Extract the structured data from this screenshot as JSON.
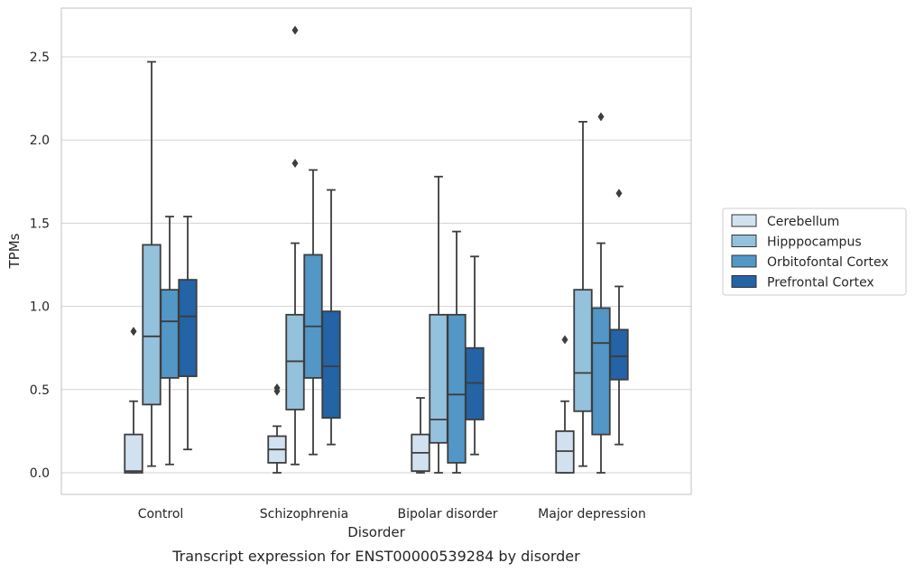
{
  "chart_data": {
    "type": "box",
    "caption": "Transcript expression for ENST00000539284 by disorder",
    "xlabel": "Disorder",
    "ylabel": "TPMs",
    "ylim": [
      -0.13,
      2.8
    ],
    "yticks": [
      0.0,
      0.5,
      1.0,
      1.5,
      2.0,
      2.5
    ],
    "grid": "horizontal",
    "legend_position": "right",
    "categories": [
      "Control",
      "Schizophrenia",
      "Bipolar disorder",
      "Major depression"
    ],
    "series": [
      {
        "name": "Cerebellum",
        "color": "#d1e1f0",
        "boxes": [
          {
            "whislo": 0.0,
            "q1": 0.0,
            "med": 0.01,
            "q3": 0.23,
            "whishi": 0.43,
            "fliers": [
              0.85
            ]
          },
          {
            "whislo": 0.0,
            "q1": 0.06,
            "med": 0.14,
            "q3": 0.22,
            "whishi": 0.28,
            "fliers": [
              0.49,
              0.51
            ]
          },
          {
            "whislo": 0.0,
            "q1": 0.01,
            "med": 0.12,
            "q3": 0.23,
            "whishi": 0.45,
            "fliers": []
          },
          {
            "whislo": 0.0,
            "q1": 0.0,
            "med": 0.13,
            "q3": 0.25,
            "whishi": 0.43,
            "fliers": [
              0.8
            ]
          }
        ]
      },
      {
        "name": "Hipppocampus",
        "color": "#94c1dc",
        "boxes": [
          {
            "whislo": 0.04,
            "q1": 0.41,
            "med": 0.82,
            "q3": 1.37,
            "whishi": 2.47,
            "fliers": []
          },
          {
            "whislo": 0.05,
            "q1": 0.38,
            "med": 0.67,
            "q3": 0.95,
            "whishi": 1.38,
            "fliers": [
              1.86,
              2.66
            ]
          },
          {
            "whislo": 0.0,
            "q1": 0.18,
            "med": 0.32,
            "q3": 0.95,
            "whishi": 1.78,
            "fliers": []
          },
          {
            "whislo": 0.04,
            "q1": 0.37,
            "med": 0.6,
            "q3": 1.1,
            "whishi": 2.11,
            "fliers": []
          }
        ]
      },
      {
        "name": "Orbitofontal Cortex",
        "color": "#5297c6",
        "boxes": [
          {
            "whislo": 0.05,
            "q1": 0.57,
            "med": 0.91,
            "q3": 1.1,
            "whishi": 1.54,
            "fliers": []
          },
          {
            "whislo": 0.11,
            "q1": 0.57,
            "med": 0.88,
            "q3": 1.31,
            "whishi": 1.82,
            "fliers": []
          },
          {
            "whislo": 0.0,
            "q1": 0.06,
            "med": 0.47,
            "q3": 0.95,
            "whishi": 1.45,
            "fliers": []
          },
          {
            "whislo": 0.0,
            "q1": 0.23,
            "med": 0.78,
            "q3": 0.99,
            "whishi": 1.38,
            "fliers": [
              2.14
            ]
          }
        ]
      },
      {
        "name": "Prefrontal Cortex",
        "color": "#2363a6",
        "boxes": [
          {
            "whislo": 0.14,
            "q1": 0.58,
            "med": 0.94,
            "q3": 1.16,
            "whishi": 1.54,
            "fliers": []
          },
          {
            "whislo": 0.17,
            "q1": 0.33,
            "med": 0.64,
            "q3": 0.97,
            "whishi": 1.7,
            "fliers": []
          },
          {
            "whislo": 0.11,
            "q1": 0.32,
            "med": 0.54,
            "q3": 0.75,
            "whishi": 1.3,
            "fliers": []
          },
          {
            "whislo": 0.17,
            "q1": 0.56,
            "med": 0.7,
            "q3": 0.86,
            "whishi": 1.12,
            "fliers": [
              1.68
            ]
          }
        ]
      }
    ]
  }
}
